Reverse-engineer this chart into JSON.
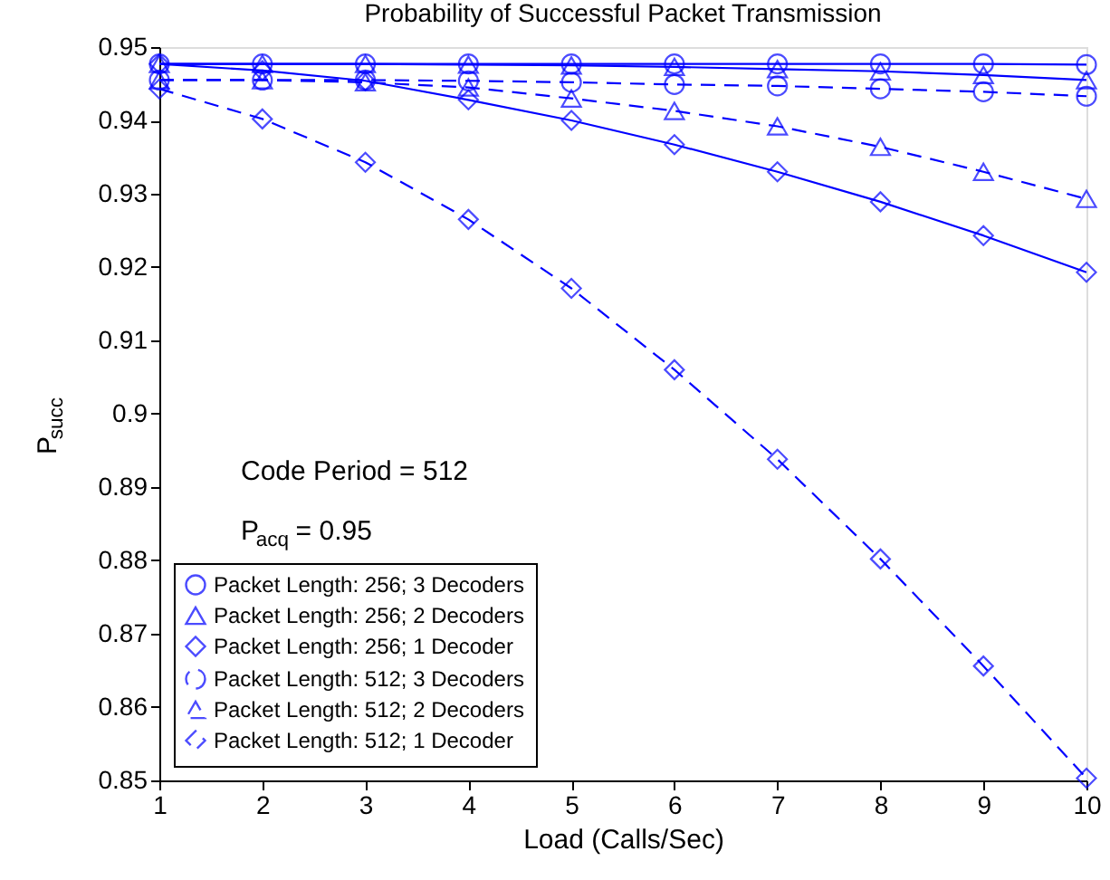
{
  "chart_data": {
    "type": "line",
    "title": "Probability of Successful Packet Transmission",
    "xlabel": "Load (Calls/Sec)",
    "ylabel": "P$_{succ}$",
    "x": [
      1,
      2,
      3,
      4,
      5,
      6,
      7,
      8,
      9,
      10
    ],
    "xlim": [
      1,
      10
    ],
    "xticks": [
      1,
      2,
      3,
      4,
      5,
      6,
      7,
      8,
      9,
      10
    ],
    "ylim": [
      0.85,
      0.95
    ],
    "yticks": [
      0.85,
      0.86,
      0.87,
      0.88,
      0.89,
      0.9,
      0.91,
      0.92,
      0.93,
      0.94,
      0.95
    ],
    "grid": false,
    "legend": "bottom left",
    "annotations": [
      "Code Period = 512",
      "P$_{acq}$ = 0.95"
    ],
    "series": [
      {
        "name": "Packet Length: 256; 3 Decoders",
        "color": "#0000ff",
        "marker": "circle",
        "line_style": "solid",
        "values": [
          0.9477,
          0.9477,
          0.9477,
          0.9477,
          0.9477,
          0.9477,
          0.9477,
          0.9477,
          0.9477,
          0.9476
        ]
      },
      {
        "name": "Packet Length: 256; 2 Decoders",
        "color": "#0000ff",
        "marker": "triangle",
        "line_style": "solid",
        "values": [
          0.9477,
          0.9477,
          0.9477,
          0.9476,
          0.9475,
          0.9473,
          0.947,
          0.9467,
          0.9462,
          0.9455
        ]
      },
      {
        "name": "Packet Length: 256; 1 Decoder",
        "color": "#0000ff",
        "marker": "diamond",
        "line_style": "solid",
        "values": [
          0.9477,
          0.9468,
          0.9454,
          0.9428,
          0.94,
          0.9367,
          0.933,
          0.9289,
          0.9243,
          0.9193
        ]
      },
      {
        "name": "Packet Length: 512; 3 Decoders",
        "color": "#0000ff",
        "marker": "circle",
        "line_style": "dashed",
        "values": [
          0.9455,
          0.9455,
          0.9455,
          0.9454,
          0.9452,
          0.9449,
          0.9447,
          0.9443,
          0.9439,
          0.9433
        ]
      },
      {
        "name": "Packet Length: 512; 2 Decoders",
        "color": "#0000ff",
        "marker": "triangle",
        "line_style": "dashed",
        "values": [
          0.9455,
          0.9455,
          0.9452,
          0.9445,
          0.943,
          0.9413,
          0.9392,
          0.9364,
          0.933,
          0.9293
        ]
      },
      {
        "name": "Packet Length: 512; 1 Decoder",
        "color": "#0000ff",
        "marker": "diamond",
        "line_style": "dashed",
        "values": [
          0.9443,
          0.9402,
          0.9343,
          0.9265,
          0.9171,
          0.906,
          0.8938,
          0.8802,
          0.8656,
          0.8503
        ]
      }
    ]
  }
}
